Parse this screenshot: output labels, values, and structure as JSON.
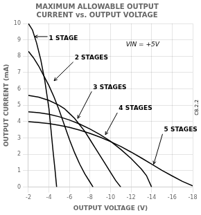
{
  "chart_data": {
    "type": "line",
    "title": [
      "MAXIMUM ALLOWABLE OUTPUT",
      "CURRENT vs. OUTPUT VOLTAGE"
    ],
    "xlabel": "OUTPUT VOLTAGE (V)",
    "ylabel": "OUTPUT CURRENT (mA)",
    "xlim": [
      -2,
      -18
    ],
    "ylim": [
      0,
      10
    ],
    "xticks": [
      -2,
      -4,
      -6,
      -8,
      -10,
      -12,
      -14,
      -16,
      -18
    ],
    "yticks": [
      0,
      1,
      2,
      3,
      4,
      5,
      6,
      7,
      8,
      9,
      10
    ],
    "grid": true,
    "series": [
      {
        "color": "#000000",
        "x": [
          -2.0,
          -2.4,
          -2.8,
          -3.2,
          -3.6,
          -4.0,
          -4.2,
          -4.4,
          -4.6,
          -4.75
        ],
        "values": [
          10.0,
          9.6,
          8.8,
          7.8,
          6.5,
          4.8,
          3.5,
          2.2,
          1.0,
          0.0
        ]
      },
      {
        "color": "#000000",
        "x": [
          -2.0,
          -2.5,
          -3.0,
          -3.5,
          -4.0,
          -4.5,
          -5.0,
          -5.5,
          -6.0,
          -6.5,
          -7.0,
          -7.5,
          -8.0,
          -8.3
        ],
        "values": [
          8.3,
          7.9,
          7.4,
          6.8,
          6.2,
          5.5,
          4.7,
          3.8,
          2.9,
          2.1,
          1.4,
          0.8,
          0.3,
          0.0
        ]
      },
      {
        "color": "#000000",
        "x": [
          -2.0,
          -3.0,
          -4.0,
          -5.0,
          -5.5,
          -6.0,
          -6.5,
          -7.0,
          -7.5,
          -8.0,
          -8.5,
          -9.0,
          -9.5,
          -10.0,
          -10.5,
          -11.0
        ],
        "values": [
          5.6,
          5.5,
          5.3,
          5.0,
          4.8,
          4.5,
          4.2,
          3.8,
          3.4,
          2.9,
          2.4,
          1.9,
          1.4,
          0.9,
          0.4,
          0.0
        ]
      },
      {
        "color": "#000000",
        "x": [
          -2.0,
          -3.0,
          -4.0,
          -5.0,
          -6.0,
          -7.0,
          -8.0,
          -9.0,
          -10.0,
          -11.0,
          -12.0,
          -13.0,
          -13.5,
          -14.0
        ],
        "values": [
          4.6,
          4.55,
          4.45,
          4.3,
          4.1,
          3.85,
          3.55,
          3.2,
          2.8,
          2.3,
          1.75,
          1.1,
          0.7,
          0.0
        ]
      },
      {
        "color": "#000000",
        "x": [
          -2.0,
          -3.0,
          -4.0,
          -5.0,
          -6.0,
          -7.0,
          -8.0,
          -9.0,
          -10.0,
          -11.0,
          -12.0,
          -13.0,
          -14.0,
          -15.0,
          -16.0,
          -17.0,
          -18.0
        ],
        "values": [
          4.0,
          3.95,
          3.88,
          3.78,
          3.65,
          3.48,
          3.28,
          3.05,
          2.78,
          2.48,
          2.14,
          1.78,
          1.4,
          1.02,
          0.68,
          0.35,
          0.08
        ]
      }
    ],
    "annotations": [
      {
        "text": "VIN = +5V",
        "xytext": [
          -11.5,
          8.7
        ]
      },
      {
        "text": "1 STAGE",
        "xy": [
          -2.6,
          9.2
        ],
        "xytext": [
          -4.0,
          9.1
        ]
      },
      {
        "text": "2 STAGES",
        "xy": [
          -4.5,
          6.5
        ],
        "xytext": [
          -6.5,
          7.9
        ]
      },
      {
        "text": "3 STAGES",
        "xy": [
          -6.8,
          4.2
        ],
        "xytext": [
          -8.3,
          6.1
        ]
      },
      {
        "text": "4 STAGES",
        "xy": [
          -9.5,
          3.2
        ],
        "xytext": [
          -10.8,
          4.8
        ]
      },
      {
        "text": "5 STAGES",
        "xy": [
          -14.2,
          1.4
        ],
        "xytext": [
          -15.2,
          3.5
        ]
      },
      {
        "text": "C8.2.2"
      }
    ]
  }
}
